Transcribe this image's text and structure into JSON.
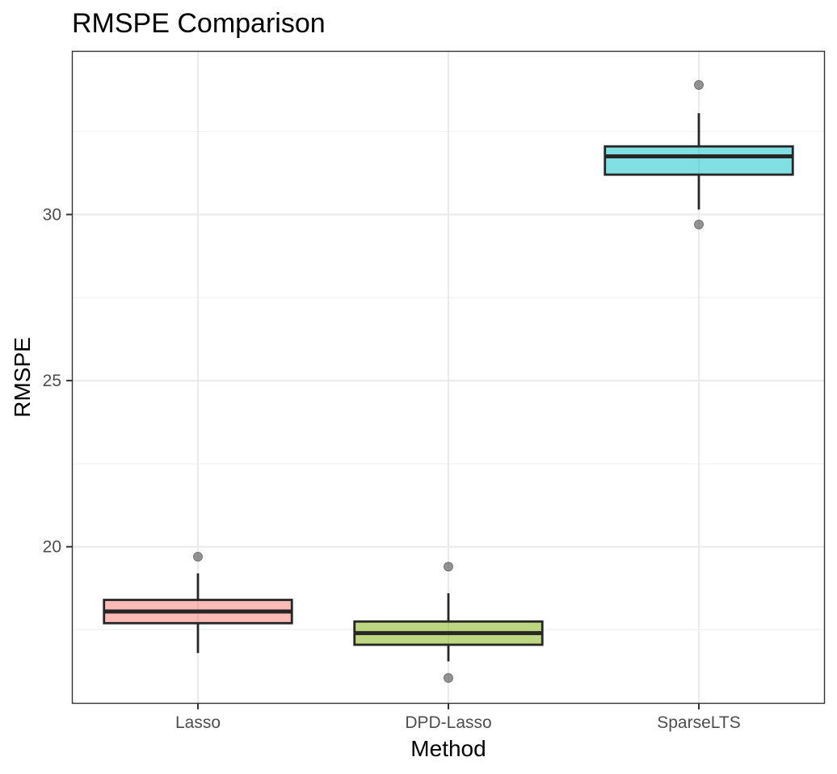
{
  "chart_data": {
    "type": "box",
    "title": "RMSPE Comparison",
    "xlabel": "Method",
    "ylabel": "RMSPE",
    "ylim": [
      15.3,
      34.9
    ],
    "yticks": [
      20,
      25,
      30
    ],
    "categories": [
      "Lasso",
      "DPD-Lasso",
      "SparseLTS"
    ],
    "boxes": [
      {
        "name": "Lasso",
        "whisker_low": 16.8,
        "q1": 17.7,
        "median": 18.05,
        "q3": 18.4,
        "whisker_high": 19.2,
        "outliers": [
          19.7
        ],
        "color": "#F8766D"
      },
      {
        "name": "DPD-Lasso",
        "whisker_low": 16.55,
        "q1": 17.05,
        "median": 17.4,
        "q3": 17.75,
        "whisker_high": 18.6,
        "outliers": [
          19.4,
          16.05
        ],
        "color": "#7CAE00"
      },
      {
        "name": "SparseLTS",
        "whisker_low": 30.15,
        "q1": 31.2,
        "median": 31.75,
        "q3": 32.05,
        "whisker_high": 33.05,
        "outliers": [
          33.9,
          29.7
        ],
        "color": "#00BFC4"
      }
    ],
    "grid": true,
    "legend": "none"
  }
}
